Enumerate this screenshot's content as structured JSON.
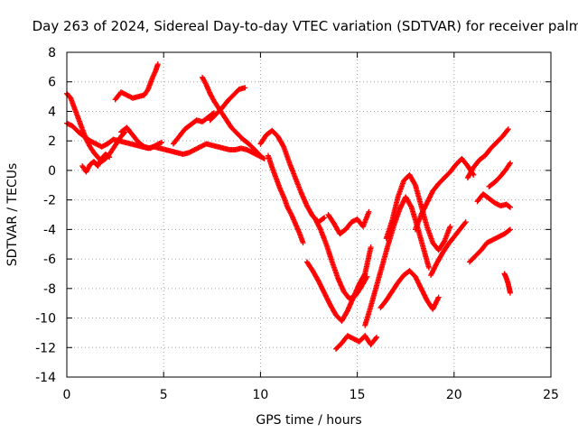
{
  "chart_data": {
    "type": "scatter",
    "title": "Day 263 of 2024, Sidereal Day-to-day VTEC variation (SDTVAR) for receiver palm",
    "xlabel": "GPS time / hours",
    "ylabel": "SDTVAR / TECUs",
    "xlim": [
      0,
      25
    ],
    "ylim": [
      -14,
      8
    ],
    "xticks": [
      0,
      5,
      10,
      15,
      20,
      25
    ],
    "yticks": [
      8,
      6,
      4,
      2,
      0,
      -2,
      -4,
      -6,
      -8,
      -10,
      -12,
      -14
    ],
    "grid": true,
    "marker": "+",
    "color": "#ff0000",
    "series": [
      {
        "name": "trace-1",
        "x": [
          0.0,
          0.3,
          0.6,
          0.9,
          1.2,
          1.5,
          1.8,
          2.1,
          2.4,
          2.7,
          3.0,
          3.3,
          3.6,
          3.9,
          4.2,
          4.5,
          4.8,
          5.1,
          5.4,
          5.7,
          6.0,
          6.3,
          6.6,
          6.9,
          7.2,
          7.5,
          7.8,
          8.1,
          8.4,
          8.7,
          9.0,
          9.3,
          9.6,
          9.9,
          10.2
        ],
        "y": [
          3.2,
          3.0,
          2.6,
          2.3,
          2.0,
          1.8,
          1.6,
          1.8,
          2.1,
          2.0,
          1.9,
          1.8,
          1.7,
          1.6,
          1.5,
          1.6,
          1.5,
          1.4,
          1.3,
          1.2,
          1.1,
          1.2,
          1.4,
          1.6,
          1.8,
          1.7,
          1.6,
          1.5,
          1.4,
          1.4,
          1.5,
          1.4,
          1.2,
          1.0,
          0.8
        ]
      },
      {
        "name": "trace-2",
        "x": [
          0.0,
          0.2,
          0.4,
          0.6,
          0.8,
          1.0,
          1.2,
          1.4,
          1.6,
          1.8,
          2.0,
          2.2,
          2.4,
          2.6,
          2.8,
          3.0
        ],
        "y": [
          5.2,
          4.9,
          4.2,
          3.5,
          2.8,
          2.1,
          1.6,
          1.2,
          0.9,
          0.6,
          0.8,
          1.1,
          1.5,
          1.9,
          2.3,
          2.6
        ]
      },
      {
        "name": "trace-3",
        "x": [
          0.8,
          1.0,
          1.2,
          1.4,
          1.6,
          1.8,
          2.0,
          2.2
        ],
        "y": [
          0.3,
          -0.1,
          0.4,
          0.6,
          0.3,
          0.8,
          1.1,
          0.9
        ]
      },
      {
        "name": "trace-4",
        "x": [
          2.5,
          2.8,
          3.1,
          3.4,
          3.7,
          4.0,
          4.2,
          4.4,
          4.6,
          4.7
        ],
        "y": [
          4.8,
          5.3,
          5.1,
          4.9,
          5.0,
          5.1,
          5.5,
          6.2,
          6.8,
          7.2
        ]
      },
      {
        "name": "trace-5",
        "x": [
          2.8,
          3.1,
          3.4,
          3.7,
          4.0,
          4.3,
          4.6,
          4.9
        ],
        "y": [
          2.6,
          2.9,
          2.4,
          1.9,
          1.6,
          1.5,
          1.7,
          1.9
        ]
      },
      {
        "name": "trace-6",
        "x": [
          5.5,
          5.8,
          6.1,
          6.4,
          6.7,
          7.0,
          7.3,
          7.6
        ],
        "y": [
          1.8,
          2.3,
          2.8,
          3.1,
          3.4,
          3.3,
          3.6,
          3.9
        ]
      },
      {
        "name": "trace-7",
        "x": [
          7.0,
          7.2,
          7.4,
          7.6,
          7.8,
          8.0,
          8.2,
          8.5,
          8.8,
          9.1,
          9.4,
          9.7,
          10.0
        ],
        "y": [
          6.3,
          5.8,
          5.2,
          4.7,
          4.3,
          3.9,
          3.5,
          2.9,
          2.5,
          2.1,
          1.8,
          1.4,
          1.0
        ]
      },
      {
        "name": "trace-8",
        "x": [
          7.4,
          7.7,
          8.0,
          8.3,
          8.6,
          8.9,
          9.2
        ],
        "y": [
          3.4,
          3.8,
          4.2,
          4.7,
          5.1,
          5.5,
          5.6
        ]
      },
      {
        "name": "trace-9",
        "x": [
          10.0,
          10.3,
          10.6,
          10.9,
          11.2,
          11.5,
          11.8,
          12.1,
          12.4,
          12.7,
          13.0,
          13.3
        ],
        "y": [
          1.8,
          2.4,
          2.7,
          2.3,
          1.6,
          0.5,
          -0.5,
          -1.5,
          -2.4,
          -3.1,
          -3.5,
          -3.2
        ]
      },
      {
        "name": "trace-10",
        "x": [
          10.4,
          10.6,
          10.8,
          11.0,
          11.2,
          11.4,
          11.6,
          11.8,
          12.0,
          12.2
        ],
        "y": [
          1.0,
          0.2,
          -0.5,
          -1.2,
          -1.8,
          -2.5,
          -3.0,
          -3.6,
          -4.2,
          -4.9
        ]
      },
      {
        "name": "trace-11",
        "x": [
          12.4,
          12.7,
          13.0,
          13.3,
          13.6,
          13.9,
          14.2,
          14.5,
          14.8,
          15.1,
          15.4,
          15.7
        ],
        "y": [
          -6.2,
          -6.8,
          -7.5,
          -8.3,
          -9.1,
          -9.8,
          -10.2,
          -9.5,
          -8.6,
          -7.7,
          -7.0,
          -5.2
        ]
      },
      {
        "name": "trace-12",
        "x": [
          12.8,
          13.1,
          13.4,
          13.7,
          14.0,
          14.3,
          14.6,
          14.9,
          15.2,
          15.5
        ],
        "y": [
          -3.2,
          -4.0,
          -5.0,
          -6.2,
          -7.3,
          -8.2,
          -8.7,
          -8.5,
          -7.9,
          -7.2
        ]
      },
      {
        "name": "trace-13",
        "x": [
          13.5,
          13.8,
          14.1,
          14.4,
          14.7,
          15.0,
          15.3,
          15.6
        ],
        "y": [
          -3.0,
          -3.6,
          -4.3,
          -4.0,
          -3.5,
          -3.3,
          -3.8,
          -2.8
        ]
      },
      {
        "name": "trace-14",
        "x": [
          13.9,
          14.2,
          14.5,
          14.8,
          15.1,
          15.4,
          15.7,
          16.0
        ],
        "y": [
          -12.1,
          -11.7,
          -11.2,
          -11.4,
          -11.6,
          -11.2,
          -11.8,
          -11.3
        ]
      },
      {
        "name": "trace-15",
        "x": [
          15.4,
          15.7,
          16.0,
          16.3,
          16.6,
          16.9,
          17.2,
          17.5,
          17.8,
          18.1,
          18.4,
          18.7
        ],
        "y": [
          -10.5,
          -9.2,
          -7.8,
          -6.4,
          -5.0,
          -3.7,
          -2.6,
          -1.8,
          -2.5,
          -3.8,
          -5.2,
          -6.6
        ]
      },
      {
        "name": "trace-16",
        "x": [
          16.2,
          16.5,
          16.8,
          17.1,
          17.4,
          17.7,
          18.0,
          18.3,
          18.6,
          18.9,
          19.2
        ],
        "y": [
          -9.3,
          -8.8,
          -8.2,
          -7.6,
          -7.1,
          -6.8,
          -7.2,
          -8.0,
          -8.8,
          -9.4,
          -8.6
        ]
      },
      {
        "name": "trace-17",
        "x": [
          16.5,
          16.8,
          17.1,
          17.4,
          17.7,
          18.0,
          18.3,
          18.6,
          18.9,
          19.2,
          19.5,
          19.8
        ],
        "y": [
          -4.6,
          -3.4,
          -1.8,
          -0.7,
          -0.3,
          -1.0,
          -2.4,
          -3.8,
          -4.9,
          -5.4,
          -4.8,
          -3.8
        ]
      },
      {
        "name": "trace-18",
        "x": [
          18.0,
          18.3,
          18.6,
          18.9,
          19.2,
          19.5,
          19.8,
          20.1,
          20.4,
          20.7,
          21.0
        ],
        "y": [
          -4.0,
          -3.0,
          -2.2,
          -1.4,
          -0.9,
          -0.5,
          -0.1,
          0.4,
          0.8,
          0.3,
          -0.3
        ]
      },
      {
        "name": "trace-19",
        "x": [
          18.8,
          19.1,
          19.4,
          19.7,
          20.0,
          20.3,
          20.6
        ],
        "y": [
          -7.1,
          -6.3,
          -5.6,
          -5.0,
          -4.5,
          -4.0,
          -3.5
        ]
      },
      {
        "name": "trace-20",
        "x": [
          20.7,
          21.0,
          21.3,
          21.6,
          21.9,
          22.2,
          22.5,
          22.8
        ],
        "y": [
          -0.5,
          0.2,
          0.7,
          1.0,
          1.5,
          1.9,
          2.3,
          2.8
        ]
      },
      {
        "name": "trace-21",
        "x": [
          21.2,
          21.5,
          21.8,
          22.1,
          22.4,
          22.7,
          22.9
        ],
        "y": [
          -2.1,
          -1.6,
          -1.9,
          -2.2,
          -2.4,
          -2.3,
          -2.5
        ]
      },
      {
        "name": "trace-22",
        "x": [
          21.8,
          22.1,
          22.4,
          22.7,
          22.9
        ],
        "y": [
          -1.1,
          -0.8,
          -0.4,
          0.1,
          0.5
        ]
      },
      {
        "name": "trace-23",
        "x": [
          20.8,
          21.1,
          21.4,
          21.7,
          22.0,
          22.3,
          22.6,
          22.9
        ],
        "y": [
          -6.2,
          -5.8,
          -5.4,
          -4.9,
          -4.7,
          -4.5,
          -4.3,
          -4.0
        ]
      },
      {
        "name": "trace-24",
        "x": [
          22.6,
          22.7,
          22.8,
          22.85,
          22.9
        ],
        "y": [
          -7.0,
          -7.3,
          -7.7,
          -8.0,
          -8.3
        ]
      }
    ]
  }
}
